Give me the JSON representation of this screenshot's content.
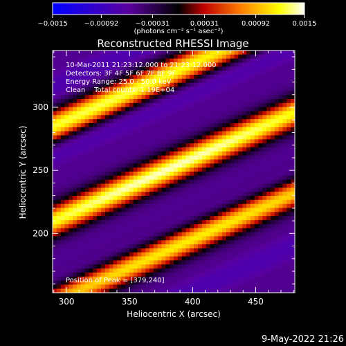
{
  "chart_data": {
    "type": "heatmap",
    "title": "Reconstructed RHESSI Image",
    "xlabel": "Heliocentric X (arcsec)",
    "ylabel": "Heliocentric Y (arcsec)",
    "xlim": [
      289,
      481
    ],
    "ylim": [
      153,
      345
    ],
    "xticks": [
      300,
      350,
      400,
      450
    ],
    "yticks": [
      200,
      250,
      300
    ],
    "colorbar": {
      "ticks": [
        -0.0015,
        -0.00092,
        -0.00031,
        0.00031,
        0.00092,
        0.0015
      ],
      "tick_labels": [
        "−0.0015",
        "−0.00092",
        "−0.00031",
        "0.00031",
        "0.00092",
        "0.0015"
      ],
      "unit_label": "(photons cm⁻² s⁻¹ asec⁻²)",
      "range": [
        -0.0015,
        0.0015
      ],
      "colors": [
        "#0000ff",
        "#5a00a0",
        "#000000",
        "#c00000",
        "#ff8000",
        "#ffff00",
        "#ffffff"
      ]
    },
    "annotations": [
      "10-Mar-2011 21:23:12.000 to 21:23:12.000",
      "Detectors: 3F 4F 5F 6F 7F 8F 9F",
      "Energy Range: 25.0 - 50.0 keV",
      "Clean    Total counts: 1.19E+04"
    ],
    "peak_label": "Position of Peak = [379,240]",
    "peak": [
      379,
      240
    ],
    "footer_date": "9-May-2022 21:26",
    "bands": [
      {
        "slope": 0.45,
        "intercept": 250,
        "peak_x": 379,
        "amplitude": 1.0
      },
      {
        "slope": 0.45,
        "intercept": 303,
        "peak_x": 330,
        "amplitude": 0.85
      },
      {
        "slope": 0.45,
        "intercept": 196,
        "peak_x": 400,
        "amplitude": 0.8
      }
    ]
  }
}
